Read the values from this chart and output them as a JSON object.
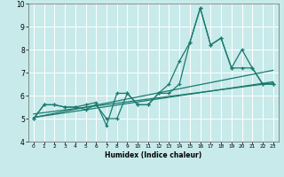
{
  "title": "",
  "xlabel": "Humidex (Indice chaleur)",
  "ylabel": "",
  "bg_color": "#c8eaea",
  "grid_color": "#ffffff",
  "line_color": "#1a7a6e",
  "xlim": [
    -0.5,
    23.5
  ],
  "ylim": [
    4,
    10
  ],
  "yticks": [
    4,
    5,
    6,
    7,
    8,
    9,
    10
  ],
  "xticks": [
    0,
    1,
    2,
    3,
    4,
    5,
    6,
    7,
    8,
    9,
    10,
    11,
    12,
    13,
    14,
    15,
    16,
    17,
    18,
    19,
    20,
    21,
    22,
    23
  ],
  "series1": [
    5.0,
    5.6,
    5.6,
    5.5,
    5.5,
    5.4,
    5.6,
    5.0,
    5.0,
    6.1,
    5.6,
    5.6,
    6.1,
    6.5,
    7.5,
    8.3,
    9.8,
    8.2,
    8.5,
    7.2,
    8.0,
    7.2,
    6.5,
    6.5
  ],
  "series2": [
    5.0,
    5.6,
    5.6,
    5.5,
    5.5,
    5.6,
    5.7,
    4.7,
    6.1,
    6.1,
    5.6,
    5.6,
    6.1,
    6.1,
    6.5,
    8.3,
    9.8,
    8.2,
    8.5,
    7.2,
    7.2,
    7.2,
    6.5,
    6.5
  ],
  "trend1_x": [
    0,
    23
  ],
  "trend1_y": [
    5.05,
    6.6
  ],
  "trend2_x": [
    0,
    23
  ],
  "trend2_y": [
    5.05,
    7.1
  ],
  "trend3_x": [
    0,
    23
  ],
  "trend3_y": [
    5.2,
    6.55
  ]
}
